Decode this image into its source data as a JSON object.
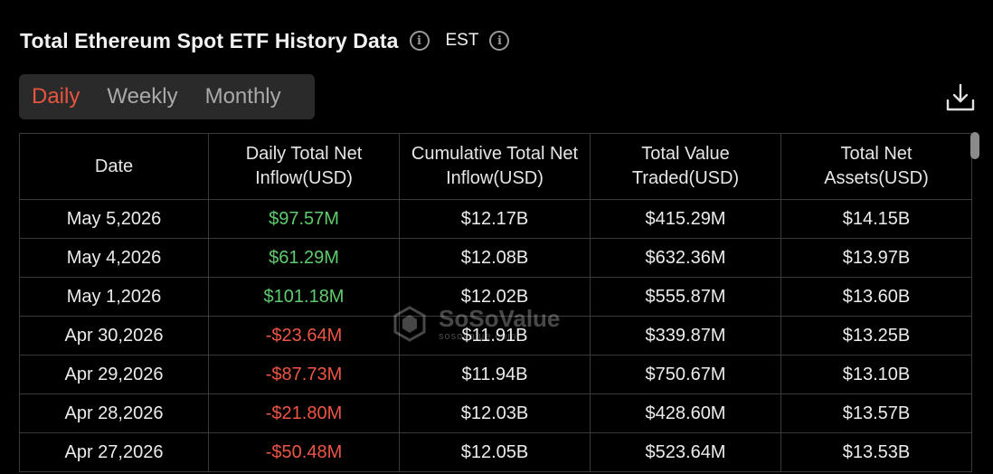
{
  "header": {
    "title": "Total Ethereum Spot ETF History Data",
    "timezone": "EST"
  },
  "tabs": [
    {
      "label": "Daily",
      "active": true
    },
    {
      "label": "Weekly",
      "active": false
    },
    {
      "label": "Monthly",
      "active": false
    }
  ],
  "table": {
    "columns": [
      "Date",
      "Daily Total Net Inflow(USD)",
      "Cumulative Total Net Inflow(USD)",
      "Total Value Traded(USD)",
      "Total Net Assets(USD)"
    ],
    "rows": [
      [
        "May 5,2026",
        "$97.57M",
        "$12.17B",
        "$415.29M",
        "$14.15B"
      ],
      [
        "May 4,2026",
        "$61.29M",
        "$12.08B",
        "$632.36M",
        "$13.97B"
      ],
      [
        "May 1,2026",
        "$101.18M",
        "$12.02B",
        "$555.87M",
        "$13.60B"
      ],
      [
        "Apr 30,2026",
        "-$23.64M",
        "$11.91B",
        "$339.87M",
        "$13.25B"
      ],
      [
        "Apr 29,2026",
        "-$87.73M",
        "$11.94B",
        "$750.67M",
        "$13.10B"
      ],
      [
        "Apr 28,2026",
        "-$21.80M",
        "$12.03B",
        "$428.60M",
        "$13.57B"
      ],
      [
        "Apr 27,2026",
        "-$50.48M",
        "$12.05B",
        "$523.64M",
        "$13.53B"
      ]
    ]
  },
  "watermark": {
    "name": "SoSoValue",
    "url": "sosovalue.com"
  },
  "colors": {
    "accent": "#e8553f",
    "positive": "#5fcb6e",
    "negative": "#ee5545",
    "background": "#000000"
  },
  "icons": [
    "info-icon",
    "download-icon",
    "sosovalue-logo-icon"
  ]
}
